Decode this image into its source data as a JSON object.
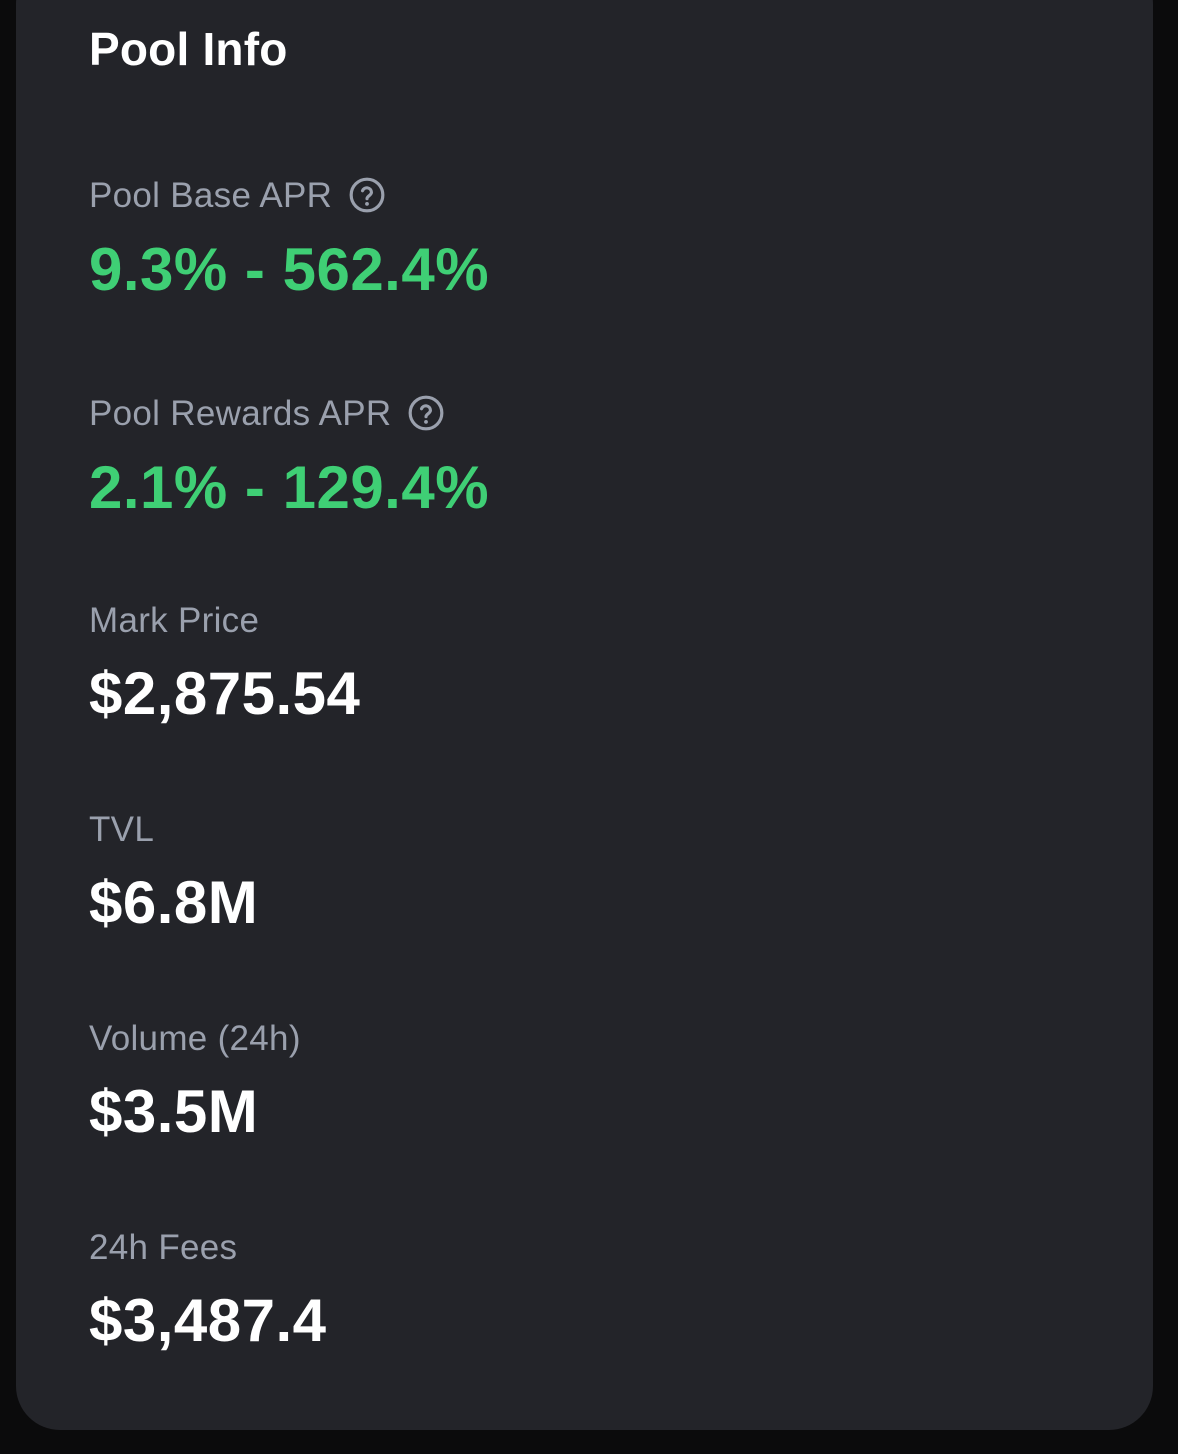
{
  "panel": {
    "title": "Pool Info"
  },
  "stats": [
    {
      "label": "Pool Base APR",
      "value": "9.3% - 562.4%",
      "has_help": true,
      "value_color": "#3fcf75"
    },
    {
      "label": "Pool Rewards APR",
      "value": "2.1% - 129.4%",
      "has_help": true,
      "value_color": "#3fcf75"
    },
    {
      "label": "Mark Price",
      "value": "$2,875.54",
      "has_help": false,
      "value_color": "#ffffff"
    },
    {
      "label": "TVL",
      "value": "$6.8M",
      "has_help": false,
      "value_color": "#ffffff"
    },
    {
      "label": "Volume (24h)",
      "value": "$3.5M",
      "has_help": false,
      "value_color": "#ffffff"
    },
    {
      "label": "24h Fees",
      "value": "$3,487.4",
      "has_help": false,
      "value_color": "#ffffff"
    }
  ],
  "icons": {
    "help": "question-circle-icon"
  },
  "colors": {
    "panel_bg": "#232429",
    "page_bg": "#0b0b0c",
    "label": "#9aa0ad",
    "positive": "#3fcf75",
    "value": "#ffffff"
  }
}
